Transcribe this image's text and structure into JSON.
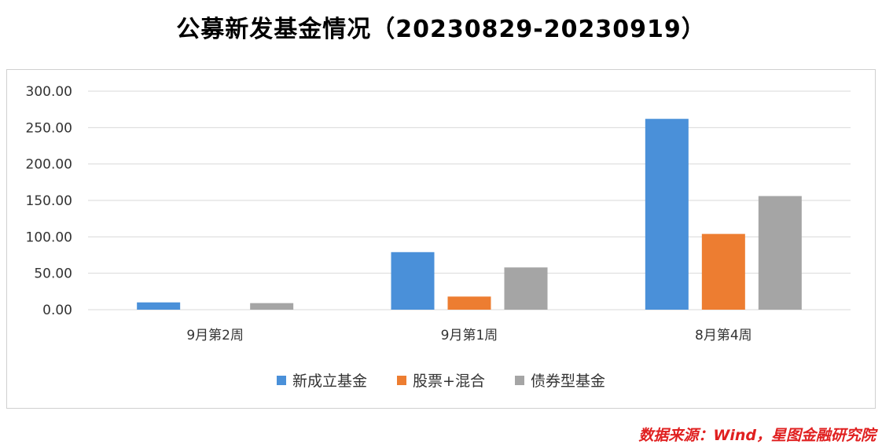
{
  "chart_data": {
    "type": "bar",
    "title": "公募新发基金情况（20230829-20230919）",
    "categories": [
      "9月第2周",
      "9月第1周",
      "8月第4周"
    ],
    "series": [
      {
        "name": "新成立基金",
        "color": "#4a90d9",
        "values": [
          10,
          79,
          262
        ]
      },
      {
        "name": "股票+混合",
        "color": "#ed7d31",
        "values": [
          0,
          18,
          104
        ]
      },
      {
        "name": "债券型基金",
        "color": "#a5a5a5",
        "values": [
          9,
          58,
          156
        ]
      }
    ],
    "ylim": [
      0,
      300
    ],
    "yticks": [
      "0.00",
      "50.00",
      "100.00",
      "150.00",
      "200.00",
      "250.00",
      "300.00"
    ],
    "grid": true,
    "legend_position": "bottom"
  },
  "source_note": "数据来源：Wind，星图金融研究院"
}
